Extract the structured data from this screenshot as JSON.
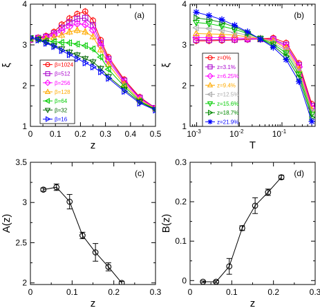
{
  "chart_data": [
    {
      "type": "line",
      "panel_label": "(a)",
      "xlabel": "z",
      "ylabel": "ξ",
      "xlim": [
        0,
        0.5
      ],
      "ylim": [
        1,
        4
      ],
      "xticks": [
        0,
        0.1,
        0.2,
        0.3,
        0.4,
        0.5
      ],
      "xtick_labels": [
        "0",
        "0.1",
        "0.2",
        "0.3",
        "0.4",
        "0.5"
      ],
      "yticks": [
        1,
        2,
        3,
        4
      ],
      "ytick_labels": [
        "1",
        "2",
        "3",
        "4"
      ],
      "x_scale": "linear",
      "legend_position": "bottom-left",
      "x": [
        0.0,
        0.031,
        0.0625,
        0.094,
        0.125,
        0.156,
        0.187,
        0.219,
        0.25,
        0.281,
        0.312,
        0.375,
        0.437,
        0.5
      ],
      "series": [
        {
          "name": "β=1024",
          "color": "#ff0000",
          "marker": "circle",
          "values": [
            3.12,
            3.18,
            3.22,
            3.32,
            3.5,
            3.65,
            3.76,
            3.82,
            3.6,
            3.12,
            2.7,
            2.15,
            1.72,
            1.45
          ]
        },
        {
          "name": "β=512",
          "color": "#aa00cc",
          "marker": "square",
          "values": [
            3.13,
            3.17,
            3.2,
            3.28,
            3.42,
            3.55,
            3.64,
            3.66,
            3.48,
            3.05,
            2.65,
            2.12,
            1.7,
            1.45
          ]
        },
        {
          "name": "β=256",
          "color": "#ff00ff",
          "marker": "diamond",
          "values": [
            3.14,
            3.16,
            3.18,
            3.24,
            3.34,
            3.45,
            3.52,
            3.5,
            3.36,
            2.98,
            2.6,
            2.08,
            1.68,
            1.44
          ]
        },
        {
          "name": "β=128",
          "color": "#ffaa00",
          "marker": "triangle-up",
          "values": [
            3.15,
            3.15,
            3.15,
            3.18,
            3.24,
            3.32,
            3.36,
            3.32,
            3.2,
            2.88,
            2.52,
            2.03,
            1.65,
            1.43
          ]
        },
        {
          "name": "β=64",
          "color": "#00cc00",
          "marker": "triangle-left",
          "values": [
            3.16,
            3.14,
            3.1,
            3.08,
            3.06,
            3.05,
            3.02,
            2.98,
            2.9,
            2.7,
            2.4,
            1.98,
            1.62,
            1.42
          ]
        },
        {
          "name": "β=32",
          "color": "#006600",
          "marker": "triangle-down",
          "values": [
            3.17,
            3.13,
            3.06,
            2.98,
            2.9,
            2.82,
            2.75,
            2.66,
            2.58,
            2.42,
            2.22,
            1.9,
            1.6,
            1.41
          ]
        },
        {
          "name": "β=16",
          "color": "#0000ff",
          "marker": "triangle-right",
          "values": [
            3.18,
            3.12,
            3.04,
            2.96,
            2.86,
            2.76,
            2.66,
            2.56,
            2.46,
            2.34,
            2.18,
            1.86,
            1.57,
            1.4
          ]
        }
      ]
    },
    {
      "type": "line",
      "panel_label": "(b)",
      "xlabel": "T",
      "ylabel": "ξ",
      "xlim": [
        0.0007,
        0.6
      ],
      "ylim": [
        1,
        4
      ],
      "x_scale": "log",
      "xticks": [
        0.001,
        0.01,
        0.1
      ],
      "xtick_labels": [
        "10",
        "10",
        "10"
      ],
      "xtick_exponents": [
        "-3",
        "-2",
        "-1"
      ],
      "yticks": [
        1,
        2,
        3,
        4
      ],
      "ytick_labels": [
        "1",
        "2",
        "3",
        "4"
      ],
      "legend_position": "bottom-left",
      "x": [
        0.000977,
        0.00195,
        0.0039,
        0.0078,
        0.0156,
        0.03125,
        0.0625,
        0.125,
        0.25,
        0.5
      ],
      "series": [
        {
          "name": "z=0%",
          "color": "#ff0000",
          "marker": "circle",
          "values": [
            3.1,
            3.1,
            3.11,
            3.12,
            3.13,
            3.15,
            3.17,
            3.05,
            2.55,
            1.55
          ]
        },
        {
          "name": "z=3.1%",
          "color": "#aa00cc",
          "marker": "square",
          "values": [
            3.12,
            3.12,
            3.13,
            3.13,
            3.14,
            3.14,
            3.14,
            3.0,
            2.5,
            1.5
          ]
        },
        {
          "name": "z=6.25%",
          "color": "#ff00ff",
          "marker": "diamond",
          "values": [
            3.18,
            3.18,
            3.18,
            3.17,
            3.16,
            3.15,
            3.12,
            2.96,
            2.46,
            1.45
          ]
        },
        {
          "name": "z=9.4%",
          "color": "#ffaa00",
          "marker": "triangle-up",
          "values": [
            3.28,
            3.27,
            3.26,
            3.24,
            3.2,
            3.15,
            3.1,
            2.92,
            2.4,
            1.4
          ]
        },
        {
          "name": "z=12.5%",
          "color": "#aaaaaa",
          "marker": "triangle-left",
          "values": [
            3.42,
            3.4,
            3.36,
            3.3,
            3.24,
            3.16,
            3.06,
            2.86,
            2.34,
            1.35
          ]
        },
        {
          "name": "z=15.6%",
          "color": "#00cc00",
          "marker": "triangle-down",
          "values": [
            3.55,
            3.52,
            3.46,
            3.38,
            3.28,
            3.16,
            3.02,
            2.8,
            2.28,
            1.3
          ]
        },
        {
          "name": "z=18.7%",
          "color": "#008800",
          "marker": "triangle-right",
          "values": [
            3.66,
            3.62,
            3.55,
            3.44,
            3.3,
            3.15,
            2.98,
            2.72,
            2.2,
            1.22
          ]
        },
        {
          "name": "z=21.9%",
          "color": "#0000ff",
          "marker": "star",
          "values": [
            3.8,
            3.72,
            3.62,
            3.48,
            3.32,
            3.14,
            2.94,
            2.64,
            2.1,
            1.12
          ]
        }
      ]
    },
    {
      "type": "line",
      "panel_label": "(c)",
      "xlabel": "z",
      "ylabel": "A(z)",
      "xlim": [
        0,
        0.3
      ],
      "ylim": [
        1.98,
        3.5
      ],
      "x_scale": "linear",
      "xticks": [
        0,
        0.1,
        0.2,
        0.3
      ],
      "xtick_labels": [
        "0",
        "0.1",
        "0.2",
        "0.3"
      ],
      "yticks": [
        2,
        2.5,
        3,
        3.5
      ],
      "ytick_labels": [
        "2",
        "2.5",
        "3",
        "3.5"
      ],
      "x": [
        0.031,
        0.0625,
        0.094,
        0.125,
        0.156,
        0.187,
        0.219
      ],
      "series": [
        {
          "color": "#000000",
          "marker": "circle",
          "values": [
            3.16,
            3.19,
            3.01,
            2.59,
            2.38,
            2.2,
            2.0
          ],
          "errors": [
            0.02,
            0.04,
            0.09,
            0.04,
            0.11,
            0.05,
            0.02
          ]
        }
      ]
    },
    {
      "type": "line",
      "panel_label": "(d)",
      "xlabel": "z",
      "ylabel": "B(z)",
      "xlim": [
        0,
        0.3
      ],
      "ylim": [
        -0.01,
        0.3
      ],
      "x_scale": "linear",
      "xticks": [
        0,
        0.1,
        0.2,
        0.3
      ],
      "xtick_labels": [
        "0",
        "0.1",
        "0.2",
        "0.3"
      ],
      "yticks": [
        0,
        0.1,
        0.2,
        0.3
      ],
      "ytick_labels": [
        "0",
        "0.1",
        "0.2",
        "0.3"
      ],
      "x": [
        0.031,
        0.0625,
        0.094,
        0.125,
        0.156,
        0.187,
        0.219
      ],
      "series": [
        {
          "color": "#000000",
          "marker": "circle",
          "values": [
            -0.003,
            -0.003,
            0.036,
            0.133,
            0.19,
            0.224,
            0.262
          ],
          "errors": [
            0.002,
            0.003,
            0.02,
            0.006,
            0.02,
            0.008,
            0.005
          ]
        }
      ]
    }
  ]
}
